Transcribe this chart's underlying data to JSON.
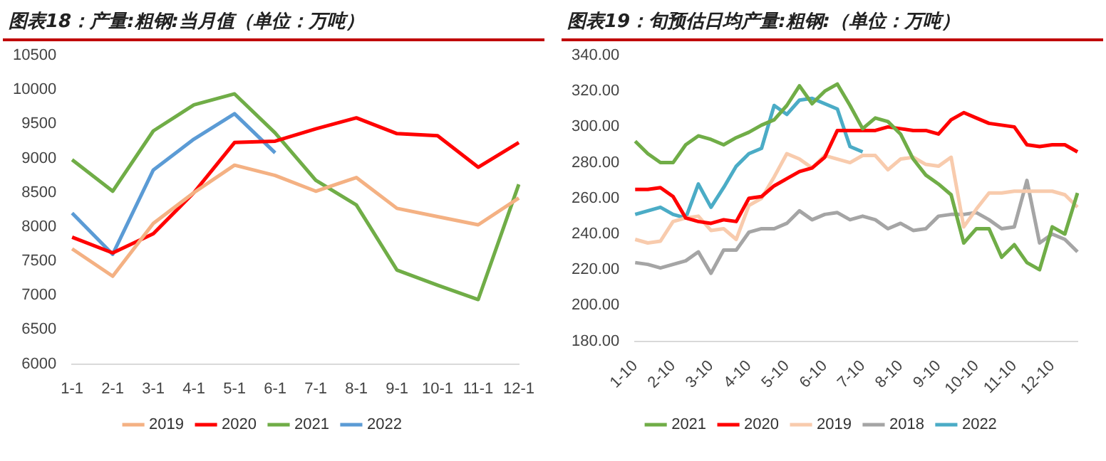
{
  "chart_data": [
    {
      "type": "line",
      "title": "图表18：产量:粗钢:当月值（单位：万吨）",
      "categories": [
        "1-1",
        "2-1",
        "3-1",
        "4-1",
        "5-1",
        "6-1",
        "7-1",
        "8-1",
        "9-1",
        "10-1",
        "11-1",
        "12-1"
      ],
      "series": [
        {
          "name": "2019",
          "color": "#f4b183",
          "values": [
            7680,
            7280,
            8050,
            8500,
            8900,
            8750,
            8520,
            8720,
            8270,
            8150,
            8030,
            8420
          ]
        },
        {
          "name": "2020",
          "color": "#ff0000",
          "values": [
            7850,
            7620,
            7900,
            8500,
            9230,
            9250,
            9430,
            9590,
            9360,
            9330,
            8870,
            9230
          ]
        },
        {
          "name": "2021",
          "color": "#70ad47",
          "values": [
            8980,
            8520,
            9400,
            9780,
            9940,
            9370,
            8680,
            8320,
            7370,
            7150,
            6940,
            8620
          ]
        },
        {
          "name": "2022",
          "color": "#5b9bd5",
          "values": [
            8200,
            7600,
            8830,
            9280,
            9650,
            9080,
            null,
            null,
            null,
            null,
            null,
            null
          ]
        }
      ],
      "ylim": [
        6000,
        10500
      ],
      "yticks": [
        6000,
        6500,
        7000,
        7500,
        8000,
        8500,
        9000,
        9500,
        10000,
        10500
      ],
      "grid": false,
      "legend": "bottom",
      "marker": "none",
      "line_style": "solid"
    },
    {
      "type": "line",
      "title": "图表19：旬预估日均产量:粗钢:（单位：万吨）",
      "categories": [
        "1-10",
        null,
        null,
        "2-10",
        null,
        null,
        "3-10",
        null,
        null,
        "4-10",
        null,
        null,
        "5-10",
        null,
        null,
        "6-10",
        null,
        null,
        "7-10",
        null,
        null,
        "8-10",
        null,
        null,
        "9-10",
        null,
        null,
        "10-10",
        null,
        null,
        "11-10",
        null,
        null,
        "12-10",
        null,
        null
      ],
      "series": [
        {
          "name": "2021",
          "color": "#70ad47",
          "values": [
            292,
            285,
            280,
            280,
            290,
            295,
            293,
            290,
            294,
            297,
            301,
            304,
            312,
            323,
            313,
            320,
            324,
            312,
            299,
            305,
            303,
            296,
            282,
            273,
            268,
            262,
            235,
            243,
            243,
            227,
            234,
            224,
            220,
            244,
            240,
            263
          ]
        },
        {
          "name": "2020",
          "color": "#ff0000",
          "values": [
            265,
            265,
            266,
            261,
            249,
            247,
            246,
            248,
            247,
            260,
            261,
            267,
            271,
            275,
            277,
            283,
            298,
            298,
            298,
            298,
            300,
            299,
            298,
            298,
            296,
            304,
            308,
            305,
            302,
            301,
            300,
            290,
            289,
            290,
            290,
            286
          ]
        },
        {
          "name": "2019",
          "color": "#f8cbad",
          "values": [
            237,
            235,
            236,
            247,
            249,
            250,
            242,
            243,
            237,
            256,
            260,
            272,
            285,
            282,
            277,
            284,
            282,
            280,
            284,
            284,
            276,
            282,
            283,
            279,
            278,
            283,
            244,
            254,
            263,
            263,
            264,
            264,
            264,
            264,
            262,
            255
          ]
        },
        {
          "name": "2018",
          "color": "#a5a5a5",
          "values": [
            224,
            223,
            221,
            223,
            225,
            230,
            218,
            231,
            231,
            241,
            243,
            243,
            246,
            253,
            248,
            251,
            252,
            248,
            250,
            248,
            243,
            246,
            242,
            243,
            250,
            251,
            251,
            252,
            248,
            243,
            244,
            270,
            235,
            240,
            237,
            230
          ]
        },
        {
          "name": "2022",
          "color": "#4bacc6",
          "values": [
            251,
            253,
            255,
            251,
            249,
            268,
            255,
            266,
            278,
            285,
            288,
            312,
            307,
            315,
            316,
            313,
            310,
            289,
            286,
            null,
            null,
            null,
            null,
            null,
            null,
            null,
            null,
            null,
            null,
            null,
            null,
            null,
            null,
            null,
            null,
            null
          ]
        }
      ],
      "ylim": [
        180,
        340
      ],
      "yticks": [
        {
          "value": 180,
          "label": "180.00"
        },
        {
          "value": 200,
          "label": "200.00"
        },
        {
          "value": 220,
          "label": "220.00"
        },
        {
          "value": 240,
          "label": "240.00"
        },
        {
          "value": 260,
          "label": "260.00"
        },
        {
          "value": 280,
          "label": "280.00"
        },
        {
          "value": 300,
          "label": "300.00"
        },
        {
          "value": 320,
          "label": "320.00"
        },
        {
          "value": 340,
          "label": "340.00"
        }
      ],
      "grid": false,
      "legend": "bottom",
      "marker": "none",
      "line_style": "solid"
    }
  ]
}
